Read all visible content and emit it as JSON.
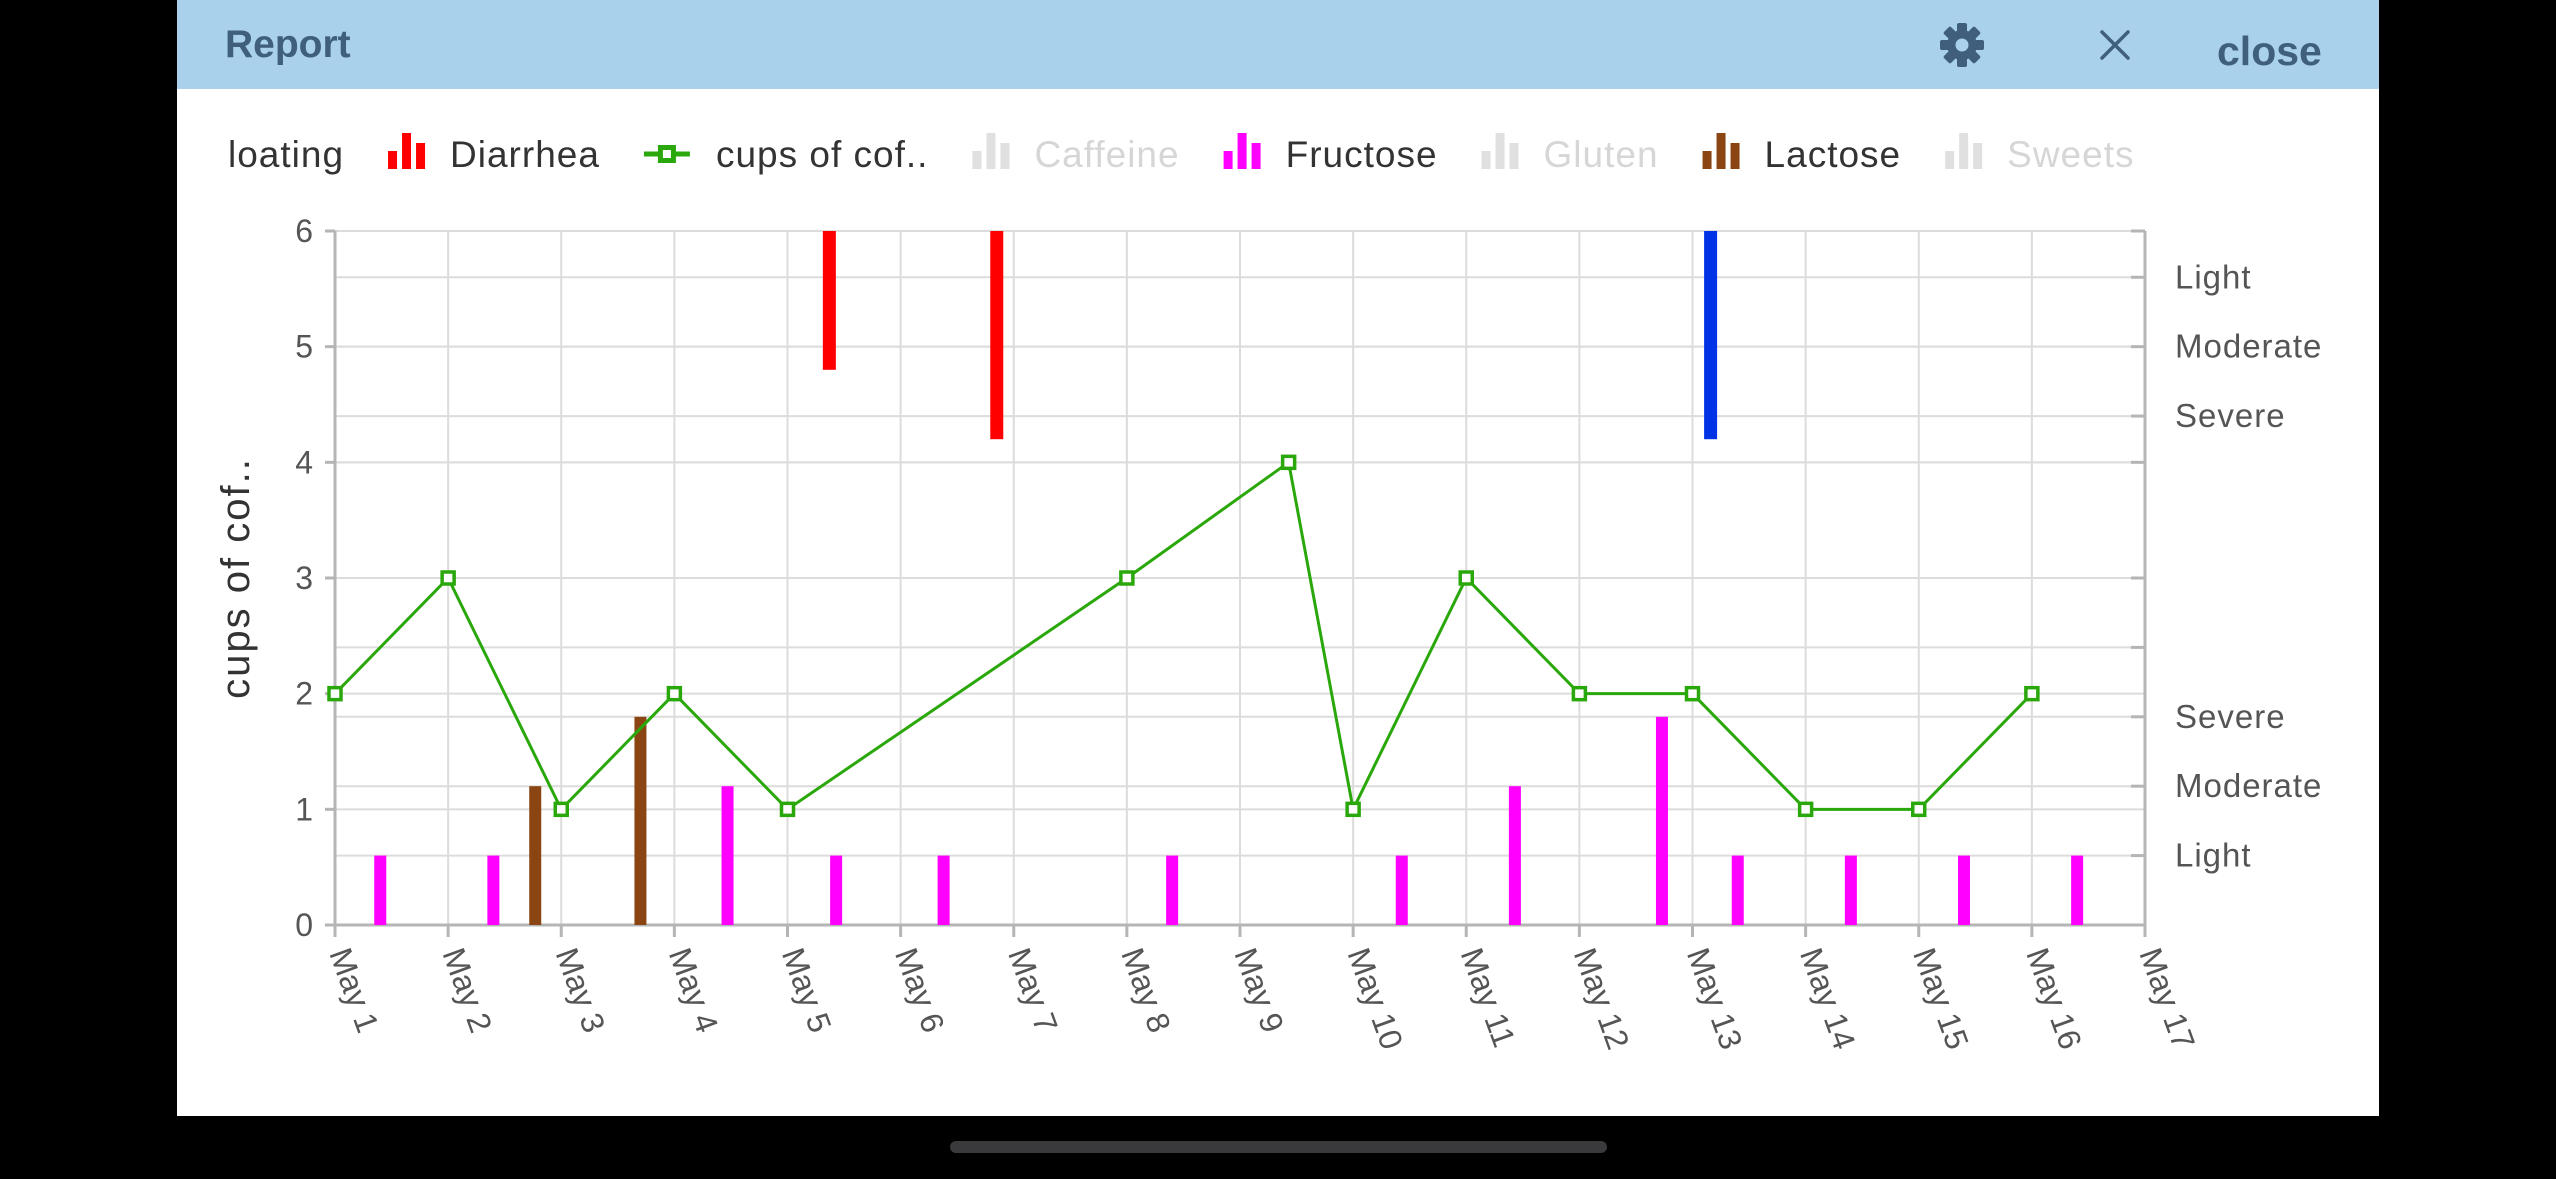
{
  "window": {
    "title": "Report",
    "settings_icon": "gear-icon",
    "close_icon": "x-close-icon",
    "close_label": "close"
  },
  "colors": {
    "titlebar": "#a9d1ec",
    "title_text": "#3f5f7d",
    "grid": "#dcdcdc",
    "axis": "#b5b5b5"
  },
  "chart_data": {
    "type": "bar",
    "title": "",
    "ylabel": "cups of cof..",
    "ylim": [
      0,
      6
    ],
    "y_ticks": [
      0,
      1,
      2,
      3,
      4,
      5,
      6
    ],
    "x_ticks": [
      "May 1",
      "May 2",
      "May 3",
      "May 4",
      "May 5",
      "May 6",
      "May 7",
      "May 8",
      "May 9",
      "May 10",
      "May 11",
      "May 12",
      "May 13",
      "May 14",
      "May 15",
      "May 16",
      "May 17"
    ],
    "grid": true,
    "legend": {
      "placement": "top",
      "items": [
        {
          "label": "loating",
          "icon": "none",
          "enabled": true,
          "color": "#333333"
        },
        {
          "label": "Diarrhea",
          "icon": "bar-icon",
          "enabled": true,
          "color": "#ff0000"
        },
        {
          "label": "cups of cof..",
          "icon": "line-marker-icon",
          "enabled": true,
          "color": "#2aa80b"
        },
        {
          "label": "Caffeine",
          "icon": "bar-icon",
          "enabled": false,
          "color": "#e0e0e0"
        },
        {
          "label": "Fructose",
          "icon": "bar-icon",
          "enabled": true,
          "color": "#ff00ff"
        },
        {
          "label": "Gluten",
          "icon": "bar-icon",
          "enabled": false,
          "color": "#e0e0e0"
        },
        {
          "label": "Lactose",
          "icon": "bar-icon",
          "enabled": true,
          "color": "#8b4513"
        },
        {
          "label": "Sweets",
          "icon": "bar-icon",
          "enabled": false,
          "color": "#e0e0e0"
        }
      ]
    },
    "right_axis_upper": {
      "labels": [
        {
          "label": "Light",
          "value": 5.6
        },
        {
          "label": "Moderate",
          "value": 5.0
        },
        {
          "label": "Severe",
          "value": 4.4
        }
      ]
    },
    "right_axis_lower": {
      "labels": [
        {
          "label": "Severe",
          "value": 1.8
        },
        {
          "label": "Moderate",
          "value": 1.2
        },
        {
          "label": "Light",
          "value": 0.6
        }
      ]
    },
    "right_axis_minor_ticks": [
      4.0,
      3.0,
      2.4
    ],
    "series": [
      {
        "name": "cups of cof..",
        "kind": "line",
        "color": "#2aa80b",
        "points": [
          {
            "x": 0,
            "y": 2
          },
          {
            "x": 1,
            "y": 3
          },
          {
            "x": 2,
            "y": 1
          },
          {
            "x": 3,
            "y": 2
          },
          {
            "x": 4,
            "y": 1
          },
          {
            "x": 7,
            "y": 3
          },
          {
            "x": 8.43,
            "y": 4
          },
          {
            "x": 9,
            "y": 1
          },
          {
            "x": 10,
            "y": 3
          },
          {
            "x": 11,
            "y": 2
          },
          {
            "x": 12,
            "y": 2
          },
          {
            "x": 13,
            "y": 1
          },
          {
            "x": 14,
            "y": 1
          },
          {
            "x": 15,
            "y": 2
          }
        ]
      },
      {
        "name": "Diarrhea",
        "kind": "severity-bar",
        "color": "#ff0000",
        "bars": [
          {
            "x": 4.37,
            "from": 4.8,
            "to": 6
          },
          {
            "x": 5.85,
            "from": 4.2,
            "to": 6
          }
        ]
      },
      {
        "kind": "severity-bar",
        "color": "#0033e6",
        "bars": [
          {
            "x": 12.16,
            "from": 4.2,
            "to": 6
          }
        ]
      },
      {
        "name": "Fructose",
        "kind": "bar",
        "color": "#ff00ff",
        "bars": [
          {
            "x": 0.4,
            "value": 0.6
          },
          {
            "x": 1.4,
            "value": 0.6
          },
          {
            "x": 3.47,
            "value": 1.2
          },
          {
            "x": 4.43,
            "value": 0.6
          },
          {
            "x": 5.38,
            "value": 0.6
          },
          {
            "x": 7.4,
            "value": 0.6
          },
          {
            "x": 9.43,
            "value": 0.6
          },
          {
            "x": 10.43,
            "value": 1.2
          },
          {
            "x": 11.73,
            "value": 1.8
          },
          {
            "x": 12.4,
            "value": 0.6
          },
          {
            "x": 13.4,
            "value": 0.6
          },
          {
            "x": 14.4,
            "value": 0.6
          },
          {
            "x": 15.4,
            "value": 0.6
          }
        ]
      },
      {
        "name": "Lactose",
        "kind": "bar",
        "color": "#8b4513",
        "bars": [
          {
            "x": 1.77,
            "value": 1.2
          },
          {
            "x": 2.7,
            "value": 1.8
          }
        ]
      }
    ]
  }
}
